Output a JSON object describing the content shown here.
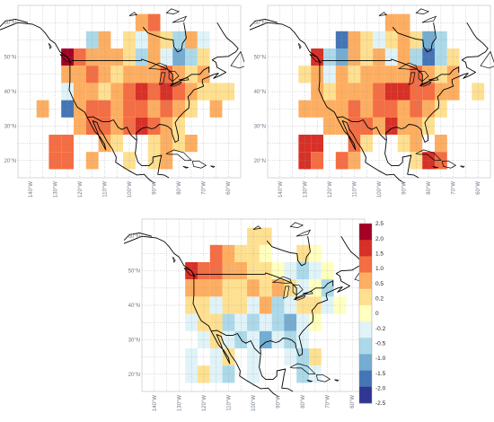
{
  "lat_labels": [
    "60°N",
    "50°N",
    "40°N",
    "30°N",
    "20°N"
  ],
  "lat_values": [
    60,
    50,
    40,
    30,
    20
  ],
  "lon_labels": [
    "140°W",
    "130°W",
    "120°W",
    "110°W",
    "100°W",
    "90°W",
    "80°W",
    "70°W",
    "60°W"
  ],
  "lon_values": [
    -140,
    -130,
    -120,
    -110,
    -100,
    -90,
    -80,
    -70,
    -60
  ],
  "colorbar": {
    "labels": [
      "2.5",
      "2.0",
      "1.5",
      "1.0",
      "0.5",
      "0.2",
      "0",
      "-0.2",
      "-0.5",
      "-1.0",
      "-1.5",
      "-2.0",
      "-2.5"
    ],
    "colors": [
      "#a50026",
      "#d73027",
      "#f46d43",
      "#fdae61",
      "#fee090",
      "#ffffbf",
      "#e0f3f8",
      "#abd9e9",
      "#74add1",
      "#4575b4",
      "#313695"
    ]
  },
  "panels": [
    {
      "name": "top-left",
      "cells": [
        [
          "-95",
          "60",
          "#fdae61"
        ],
        [
          "-90",
          "60",
          "#f46d43"
        ],
        [
          "-115",
          "55",
          "#abd9e9"
        ],
        [
          "-110",
          "55",
          "#fdae61"
        ],
        [
          "-100",
          "55",
          "#fee090"
        ],
        [
          "-95",
          "55",
          "#e0f3f8"
        ],
        [
          "-90",
          "55",
          "#fdae61"
        ],
        [
          "-85",
          "55",
          "#fee090"
        ],
        [
          "-80",
          "55",
          "#abd9e9"
        ],
        [
          "-75",
          "55",
          "#fdae61"
        ],
        [
          "-70",
          "55",
          "#e0f3f8"
        ],
        [
          "-125",
          "50",
          "#a50026"
        ],
        [
          "-120",
          "50",
          "#f46d43"
        ],
        [
          "-115",
          "50",
          "#fdae61"
        ],
        [
          "-110",
          "50",
          "#fdae61"
        ],
        [
          "-105",
          "50",
          "#fdae61"
        ],
        [
          "-100",
          "50",
          "#fee090"
        ],
        [
          "-95",
          "50",
          "#abd9e9"
        ],
        [
          "-90",
          "50",
          "#fdae61"
        ],
        [
          "-85",
          "50",
          "#e0f3f8"
        ],
        [
          "-80",
          "50",
          "#74add1"
        ],
        [
          "-75",
          "50",
          "#abd9e9"
        ],
        [
          "-70",
          "50",
          "#fee090"
        ],
        [
          "-125",
          "45",
          "#fdae61"
        ],
        [
          "-120",
          "45",
          "#fdae61"
        ],
        [
          "-115",
          "45",
          "#f46d43"
        ],
        [
          "-110",
          "45",
          "#fdae61"
        ],
        [
          "-105",
          "45",
          "#fee090"
        ],
        [
          "-100",
          "45",
          "#fdae61"
        ],
        [
          "-95",
          "45",
          "#fdae61"
        ],
        [
          "-90",
          "45",
          "#fdae61"
        ],
        [
          "-85",
          "45",
          "#f46d43"
        ],
        [
          "-80",
          "45",
          "#fdae61"
        ],
        [
          "-75",
          "45",
          "#fee090"
        ],
        [
          "-70",
          "45",
          "#fdae61"
        ],
        [
          "-125",
          "40",
          "#e0f3f8"
        ],
        [
          "-120",
          "40",
          "#fdae61"
        ],
        [
          "-115",
          "40",
          "#fdae61"
        ],
        [
          "-110",
          "40",
          "#fee090"
        ],
        [
          "-105",
          "40",
          "#fdae61"
        ],
        [
          "-100",
          "40",
          "#f46d43"
        ],
        [
          "-95",
          "40",
          "#d73027"
        ],
        [
          "-90",
          "40",
          "#f46d43"
        ],
        [
          "-85",
          "40",
          "#d73027"
        ],
        [
          "-80",
          "40",
          "#f46d43"
        ],
        [
          "-75",
          "40",
          "#fdae61"
        ],
        [
          "-70",
          "40",
          "#fee090"
        ],
        [
          "-65",
          "40",
          "#fee090"
        ],
        [
          "-60",
          "40",
          "#fee090"
        ],
        [
          "-135",
          "35",
          "#fdae61"
        ],
        [
          "-125",
          "35",
          "#4575b4"
        ],
        [
          "-120",
          "35",
          "#fdae61"
        ],
        [
          "-115",
          "35",
          "#f46d43"
        ],
        [
          "-110",
          "35",
          "#f46d43"
        ],
        [
          "-105",
          "35",
          "#fdae61"
        ],
        [
          "-100",
          "35",
          "#f46d43"
        ],
        [
          "-95",
          "35",
          "#f46d43"
        ],
        [
          "-90",
          "35",
          "#fdae61"
        ],
        [
          "-85",
          "35",
          "#f46d43"
        ],
        [
          "-80",
          "35",
          "#fdae61"
        ],
        [
          "-75",
          "35",
          "#fee090"
        ],
        [
          "-65",
          "35",
          "#fdae61"
        ],
        [
          "-120",
          "30",
          "#fdae61"
        ],
        [
          "-115",
          "30",
          "#f46d43"
        ],
        [
          "-110",
          "30",
          "#f46d43"
        ],
        [
          "-105",
          "30",
          "#fdae61"
        ],
        [
          "-100",
          "30",
          "#f46d43"
        ],
        [
          "-95",
          "30",
          "#d73027"
        ],
        [
          "-90",
          "30",
          "#f46d43"
        ],
        [
          "-85",
          "30",
          "#fdae61"
        ],
        [
          "-80",
          "30",
          "#fee090"
        ],
        [
          "-130",
          "25",
          "#f46d43"
        ],
        [
          "-125",
          "25",
          "#f46d43"
        ],
        [
          "-110",
          "25",
          "#fdae61"
        ],
        [
          "-105",
          "25",
          "#fee090"
        ],
        [
          "-90",
          "25",
          "#fee090"
        ],
        [
          "-85",
          "25",
          "#fdae61"
        ],
        [
          "-80",
          "25",
          "#fee090"
        ],
        [
          "-75",
          "25",
          "#fdae61"
        ],
        [
          "-130",
          "20",
          "#f46d43"
        ],
        [
          "-125",
          "20",
          "#f46d43"
        ],
        [
          "-115",
          "20",
          "#fdae61"
        ],
        [
          "-100",
          "20",
          "#fee090"
        ],
        [
          "-90",
          "20",
          "#fee090"
        ],
        [
          "-85",
          "20",
          "#fdae61"
        ]
      ]
    },
    {
      "name": "top-right",
      "cells": [
        [
          "-95",
          "60",
          "#fdae61"
        ],
        [
          "-90",
          "60",
          "#fdae61"
        ],
        [
          "-115",
          "55",
          "#4575b4"
        ],
        [
          "-110",
          "55",
          "#fdae61"
        ],
        [
          "-105",
          "55",
          "#fee090"
        ],
        [
          "-100",
          "55",
          "#e0f3f8"
        ],
        [
          "-95",
          "55",
          "#fee090"
        ],
        [
          "-90",
          "55",
          "#fdae61"
        ],
        [
          "-85",
          "55",
          "#fee090"
        ],
        [
          "-80",
          "55",
          "#74add1"
        ],
        [
          "-75",
          "55",
          "#abd9e9"
        ],
        [
          "-125",
          "50",
          "#d73027"
        ],
        [
          "-120",
          "50",
          "#abd9e9"
        ],
        [
          "-115",
          "50",
          "#74add1"
        ],
        [
          "-110",
          "50",
          "#fdae61"
        ],
        [
          "-105",
          "50",
          "#fee090"
        ],
        [
          "-100",
          "50",
          "#fdae61"
        ],
        [
          "-95",
          "50",
          "#e0f3f8"
        ],
        [
          "-90",
          "50",
          "#fdae61"
        ],
        [
          "-85",
          "50",
          "#abd9e9"
        ],
        [
          "-80",
          "50",
          "#4575b4"
        ],
        [
          "-75",
          "50",
          "#abd9e9"
        ],
        [
          "-70",
          "50",
          "#fee090"
        ],
        [
          "-130",
          "45",
          "#fee090"
        ],
        [
          "-125",
          "45",
          "#fdae61"
        ],
        [
          "-120",
          "45",
          "#e0f3f8"
        ],
        [
          "-115",
          "45",
          "#fdae61"
        ],
        [
          "-110",
          "45",
          "#fee090"
        ],
        [
          "-105",
          "45",
          "#fdae61"
        ],
        [
          "-100",
          "45",
          "#fdae61"
        ],
        [
          "-95",
          "45",
          "#fdae61"
        ],
        [
          "-90",
          "45",
          "#fdae61"
        ],
        [
          "-85",
          "45",
          "#f46d43"
        ],
        [
          "-80",
          "45",
          "#fdae61"
        ],
        [
          "-75",
          "45",
          "#fee090"
        ],
        [
          "-70",
          "45",
          "#fdae61"
        ],
        [
          "-125",
          "40",
          "#fdae61"
        ],
        [
          "-120",
          "40",
          "#fee090"
        ],
        [
          "-115",
          "40",
          "#fdae61"
        ],
        [
          "-110",
          "40",
          "#fdae61"
        ],
        [
          "-105",
          "40",
          "#fdae61"
        ],
        [
          "-100",
          "40",
          "#f46d43"
        ],
        [
          "-95",
          "40",
          "#d73027"
        ],
        [
          "-90",
          "40",
          "#d73027"
        ],
        [
          "-85",
          "40",
          "#f46d43"
        ],
        [
          "-80",
          "40",
          "#f46d43"
        ],
        [
          "-75",
          "40",
          "#fdae61"
        ],
        [
          "-70",
          "40",
          "#fdae61"
        ],
        [
          "-60",
          "40",
          "#fee090"
        ],
        [
          "-130",
          "35",
          "#fdae61"
        ],
        [
          "-125",
          "35",
          "#fdae61"
        ],
        [
          "-120",
          "35",
          "#fdae61"
        ],
        [
          "-115",
          "35",
          "#fdae61"
        ],
        [
          "-110",
          "35",
          "#f46d43"
        ],
        [
          "-105",
          "35",
          "#fdae61"
        ],
        [
          "-100",
          "35",
          "#f46d43"
        ],
        [
          "-95",
          "35",
          "#f46d43"
        ],
        [
          "-90",
          "35",
          "#fdae61"
        ],
        [
          "-85",
          "35",
          "#f46d43"
        ],
        [
          "-80",
          "35",
          "#fdae61"
        ],
        [
          "-75",
          "35",
          "#fee090"
        ],
        [
          "-120",
          "30",
          "#fdae61"
        ],
        [
          "-115",
          "30",
          "#fdae61"
        ],
        [
          "-110",
          "30",
          "#f46d43"
        ],
        [
          "-105",
          "30",
          "#f46d43"
        ],
        [
          "-100",
          "30",
          "#fdae61"
        ],
        [
          "-95",
          "30",
          "#d73027"
        ],
        [
          "-90",
          "30",
          "#fdae61"
        ],
        [
          "-85",
          "30",
          "#fdae61"
        ],
        [
          "-80",
          "30",
          "#fee090"
        ],
        [
          "-130",
          "25",
          "#d73027"
        ],
        [
          "-125",
          "25",
          "#d73027"
        ],
        [
          "-110",
          "25",
          "#f46d43"
        ],
        [
          "-105",
          "25",
          "#fee090"
        ],
        [
          "-90",
          "25",
          "#fee090"
        ],
        [
          "-85",
          "25",
          "#fdae61"
        ],
        [
          "-75",
          "25",
          "#fdae61"
        ],
        [
          "-130",
          "20",
          "#d73027"
        ],
        [
          "-125",
          "20",
          "#f46d43"
        ],
        [
          "-115",
          "20",
          "#f46d43"
        ],
        [
          "-110",
          "20",
          "#fdae61"
        ],
        [
          "-85",
          "20",
          "#fee090"
        ],
        [
          "-80",
          "20",
          "#d73027"
        ],
        [
          "-75",
          "20",
          "#f46d43"
        ]
      ]
    },
    {
      "name": "bottom",
      "cells": [
        [
          "-100",
          "60",
          "#fee090"
        ],
        [
          "-95",
          "60",
          "#fee090"
        ],
        [
          "-115",
          "55",
          "#f46d43"
        ],
        [
          "-110",
          "55",
          "#fdae61"
        ],
        [
          "-105",
          "55",
          "#fee090"
        ],
        [
          "-100",
          "55",
          "#fee090"
        ],
        [
          "-95",
          "55",
          "#ffffbf"
        ],
        [
          "-80",
          "55",
          "#fee090"
        ],
        [
          "-75",
          "55",
          "#ffffbf"
        ],
        [
          "-125",
          "50",
          "#d73027"
        ],
        [
          "-120",
          "50",
          "#f46d43"
        ],
        [
          "-115",
          "50",
          "#f46d43"
        ],
        [
          "-110",
          "50",
          "#fdae61"
        ],
        [
          "-105",
          "50",
          "#fdae61"
        ],
        [
          "-100",
          "50",
          "#fee090"
        ],
        [
          "-95",
          "50",
          "#fee090"
        ],
        [
          "-90",
          "50",
          "#ffffbf"
        ],
        [
          "-85",
          "50",
          "#e0f3f8"
        ],
        [
          "-80",
          "50",
          "#abd9e9"
        ],
        [
          "-75",
          "50",
          "#e0f3f8"
        ],
        [
          "-70",
          "50",
          "#ffffbf"
        ],
        [
          "-125",
          "45",
          "#fdae61"
        ],
        [
          "-120",
          "45",
          "#fdae61"
        ],
        [
          "-115",
          "45",
          "#fdae61"
        ],
        [
          "-110",
          "45",
          "#fee090"
        ],
        [
          "-105",
          "45",
          "#fee090"
        ],
        [
          "-100",
          "45",
          "#fdae61"
        ],
        [
          "-95",
          "45",
          "#fee090"
        ],
        [
          "-90",
          "45",
          "#fdae61"
        ],
        [
          "-85",
          "45",
          "#fee090"
        ],
        [
          "-80",
          "45",
          "#e0f3f8"
        ],
        [
          "-75",
          "45",
          "#ffffbf"
        ],
        [
          "-70",
          "45",
          "#abd9e9"
        ],
        [
          "-125",
          "40",
          "#fee090"
        ],
        [
          "-120",
          "40",
          "#fee090"
        ],
        [
          "-115",
          "40",
          "#e0f3f8"
        ],
        [
          "-110",
          "40",
          "#fee090"
        ],
        [
          "-105",
          "40",
          "#fee090"
        ],
        [
          "-100",
          "40",
          "#e0f3f8"
        ],
        [
          "-95",
          "40",
          "#fdae61"
        ],
        [
          "-90",
          "40",
          "#abd9e9"
        ],
        [
          "-85",
          "40",
          "#e0f3f8"
        ],
        [
          "-80",
          "40",
          "#fee090"
        ],
        [
          "-75",
          "40",
          "#fee090"
        ],
        [
          "-70",
          "40",
          "#e0f3f8"
        ],
        [
          "-65",
          "40",
          "#ffffbf"
        ],
        [
          "-125",
          "35",
          "#e0f3f8"
        ],
        [
          "-120",
          "35",
          "#fee090"
        ],
        [
          "-115",
          "35",
          "#fee090"
        ],
        [
          "-110",
          "35",
          "#abd9e9"
        ],
        [
          "-105",
          "35",
          "#e0f3f8"
        ],
        [
          "-100",
          "35",
          "#abd9e9"
        ],
        [
          "-95",
          "35",
          "#e0f3f8"
        ],
        [
          "-90",
          "35",
          "#abd9e9"
        ],
        [
          "-85",
          "35",
          "#74add1"
        ],
        [
          "-80",
          "35",
          "#e0f3f8"
        ],
        [
          "-75",
          "35",
          "#ffffbf"
        ],
        [
          "-120",
          "30",
          "#e0f3f8"
        ],
        [
          "-115",
          "30",
          "#fee090"
        ],
        [
          "-110",
          "30",
          "#e0f3f8"
        ],
        [
          "-105",
          "30",
          "#abd9e9"
        ],
        [
          "-100",
          "30",
          "#e0f3f8"
        ],
        [
          "-95",
          "30",
          "#74add1"
        ],
        [
          "-90",
          "30",
          "#e0f3f8"
        ],
        [
          "-85",
          "30",
          "#abd9e9"
        ],
        [
          "-80",
          "30",
          "#e0f3f8"
        ],
        [
          "-125",
          "25",
          "#e0f3f8"
        ],
        [
          "-115",
          "25",
          "#e0f3f8"
        ],
        [
          "-110",
          "25",
          "#fee090"
        ],
        [
          "-100",
          "25",
          "#e0f3f8"
        ],
        [
          "-85",
          "25",
          "#e0f3f8"
        ],
        [
          "-80",
          "25",
          "#abd9e9"
        ],
        [
          "-75",
          "25",
          "#fee090"
        ],
        [
          "-125",
          "20",
          "#e0f3f8"
        ],
        [
          "-120",
          "20",
          "#fee090"
        ],
        [
          "-115",
          "20",
          "#e0f3f8"
        ],
        [
          "-110",
          "20",
          "#abd9e9"
        ],
        [
          "-100",
          "20",
          "#e0f3f8"
        ],
        [
          "-80",
          "20",
          "#abd9e9"
        ],
        [
          "-75",
          "20",
          "#e0f3f8"
        ]
      ]
    }
  ]
}
